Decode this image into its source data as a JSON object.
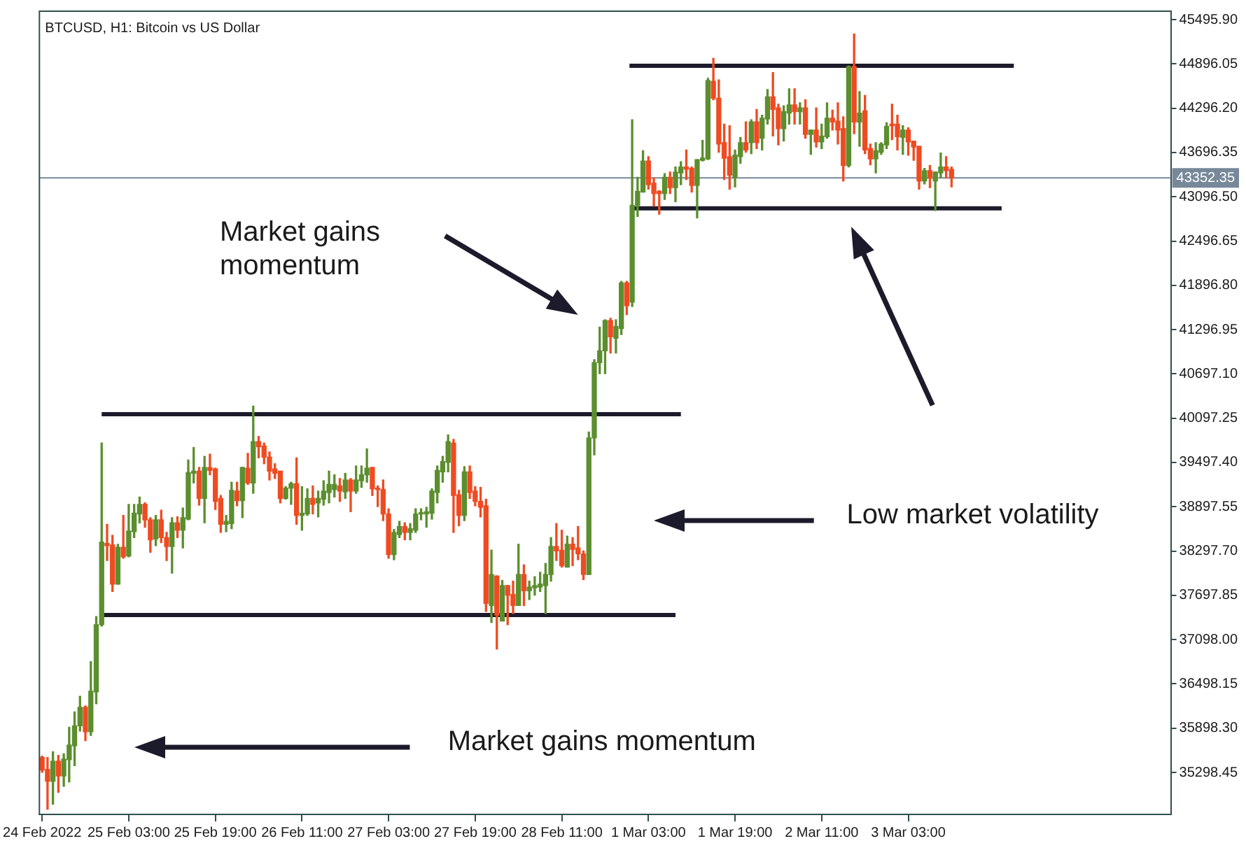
{
  "chart_data": {
    "type": "candlestick",
    "title": "BTCUSD, H1: Bitcoin vs US Dollar",
    "annotations": [
      "Market gains\nmomentum",
      "Low market volatility",
      "Market gains momentum"
    ],
    "x": [
      "2022-02-24T11:00",
      "2022-02-24T12:00",
      "2022-02-24T13:00",
      "2022-02-24T14:00",
      "2022-02-24T15:00",
      "2022-02-24T16:00",
      "2022-02-24T17:00",
      "2022-02-24T18:00",
      "2022-02-24T19:00",
      "2022-02-24T20:00",
      "2022-02-24T21:00",
      "2022-02-24T22:00",
      "2022-02-24T23:00",
      "2022-02-25T00:00",
      "2022-02-25T01:00",
      "2022-02-25T02:00",
      "2022-02-25T03:00",
      "2022-02-25T04:00",
      "2022-02-25T05:00",
      "2022-02-25T06:00",
      "2022-02-25T07:00",
      "2022-02-25T08:00",
      "2022-02-25T09:00",
      "2022-02-25T10:00",
      "2022-02-25T11:00",
      "2022-02-25T12:00",
      "2022-02-25T13:00",
      "2022-02-25T14:00",
      "2022-02-25T15:00",
      "2022-02-25T16:00",
      "2022-02-25T17:00",
      "2022-02-25T18:00",
      "2022-02-25T19:00",
      "2022-02-25T20:00",
      "2022-02-25T21:00",
      "2022-02-25T22:00",
      "2022-02-25T23:00",
      "2022-02-26T00:00",
      "2022-02-26T01:00",
      "2022-02-26T02:00",
      "2022-02-26T03:00",
      "2022-02-26T04:00",
      "2022-02-26T05:00",
      "2022-02-26T06:00",
      "2022-02-26T07:00",
      "2022-02-26T08:00",
      "2022-02-26T09:00",
      "2022-02-26T10:00",
      "2022-02-26T11:00",
      "2022-02-26T12:00",
      "2022-02-26T13:00",
      "2022-02-26T14:00",
      "2022-02-26T15:00",
      "2022-02-26T16:00",
      "2022-02-26T17:00",
      "2022-02-26T18:00",
      "2022-02-26T19:00",
      "2022-02-26T20:00",
      "2022-02-26T21:00",
      "2022-02-26T22:00",
      "2022-02-26T23:00",
      "2022-02-27T00:00",
      "2022-02-27T01:00",
      "2022-02-27T02:00",
      "2022-02-27T03:00",
      "2022-02-27T04:00",
      "2022-02-27T05:00",
      "2022-02-27T06:00",
      "2022-02-27T07:00",
      "2022-02-27T08:00",
      "2022-02-27T09:00",
      "2022-02-27T10:00",
      "2022-02-27T11:00",
      "2022-02-27T12:00",
      "2022-02-27T13:00",
      "2022-02-27T14:00",
      "2022-02-27T15:00",
      "2022-02-27T16:00",
      "2022-02-27T17:00",
      "2022-02-27T18:00",
      "2022-02-27T19:00",
      "2022-02-27T20:00",
      "2022-02-27T21:00",
      "2022-02-27T22:00",
      "2022-02-27T23:00",
      "2022-02-28T00:00",
      "2022-02-28T01:00",
      "2022-02-28T02:00",
      "2022-02-28T03:00",
      "2022-02-28T04:00",
      "2022-02-28T05:00",
      "2022-02-28T06:00",
      "2022-02-28T07:00",
      "2022-02-28T08:00",
      "2022-02-28T09:00",
      "2022-02-28T10:00",
      "2022-02-28T11:00",
      "2022-02-28T12:00",
      "2022-02-28T13:00",
      "2022-02-28T14:00",
      "2022-02-28T15:00",
      "2022-02-28T16:00",
      "2022-02-28T17:00",
      "2022-02-28T18:00",
      "2022-02-28T19:00",
      "2022-02-28T20:00",
      "2022-02-28T21:00",
      "2022-02-28T22:00",
      "2022-02-28T23:00",
      "2022-03-01T00:00",
      "2022-03-01T01:00",
      "2022-03-01T02:00",
      "2022-03-01T03:00",
      "2022-03-01T04:00",
      "2022-03-01T05:00",
      "2022-03-01T06:00",
      "2022-03-01T07:00",
      "2022-03-01T08:00",
      "2022-03-01T09:00",
      "2022-03-01T10:00",
      "2022-03-01T11:00",
      "2022-03-01T12:00",
      "2022-03-01T13:00",
      "2022-03-01T14:00",
      "2022-03-01T15:00",
      "2022-03-01T16:00",
      "2022-03-01T17:00",
      "2022-03-01T18:00",
      "2022-03-01T19:00",
      "2022-03-01T20:00",
      "2022-03-01T21:00",
      "2022-03-01T22:00",
      "2022-03-01T23:00",
      "2022-03-02T00:00",
      "2022-03-02T01:00",
      "2022-03-02T02:00",
      "2022-03-02T03:00",
      "2022-03-02T04:00",
      "2022-03-02T05:00",
      "2022-03-02T06:00",
      "2022-03-02T07:00",
      "2022-03-02T08:00",
      "2022-03-02T09:00",
      "2022-03-02T10:00",
      "2022-03-02T11:00",
      "2022-03-02T12:00",
      "2022-03-02T13:00",
      "2022-03-02T14:00",
      "2022-03-02T15:00",
      "2022-03-02T16:00",
      "2022-03-02T17:00",
      "2022-03-02T18:00",
      "2022-03-02T19:00",
      "2022-03-02T20:00",
      "2022-03-02T21:00",
      "2022-03-02T22:00",
      "2022-03-02T23:00",
      "2022-03-03T00:00",
      "2022-03-03T01:00",
      "2022-03-03T02:00",
      "2022-03-03T03:00",
      "2022-03-03T04:00",
      "2022-03-03T05:00",
      "2022-03-03T06:00",
      "2022-03-03T07:00",
      "2022-03-03T08:00",
      "2022-03-03T09:00",
      "2022-03-03T10:00",
      "2022-03-03T11:00"
    ],
    "ohlc": [
      [
        35500,
        35520,
        35300,
        35330
      ],
      [
        35340,
        35500,
        34800,
        35180
      ],
      [
        35180,
        35580,
        34870,
        35450
      ],
      [
        35450,
        35530,
        35030,
        35250
      ],
      [
        35250,
        35550,
        35110,
        35480
      ],
      [
        35470,
        35910,
        35170,
        35670
      ],
      [
        35660,
        36120,
        35390,
        35930
      ],
      [
        35930,
        36330,
        35860,
        36180
      ],
      [
        36180,
        36200,
        35730,
        35850
      ],
      [
        35850,
        36800,
        35800,
        36400
      ],
      [
        36390,
        37410,
        36230,
        37300
      ],
      [
        37300,
        39760,
        37280,
        38420
      ],
      [
        38400,
        38660,
        38170,
        38370
      ],
      [
        38380,
        38510,
        37750,
        37850
      ],
      [
        37850,
        38390,
        37850,
        38350
      ],
      [
        38350,
        38780,
        38200,
        38220
      ],
      [
        38230,
        38930,
        38220,
        38570
      ],
      [
        38560,
        38930,
        38480,
        38810
      ],
      [
        38800,
        39030,
        38680,
        38930
      ],
      [
        38930,
        38950,
        38620,
        38720
      ],
      [
        38720,
        38750,
        38280,
        38450
      ],
      [
        38460,
        38780,
        38370,
        38720
      ],
      [
        38720,
        38850,
        38410,
        38480
      ],
      [
        38480,
        38550,
        38170,
        38360
      ],
      [
        38360,
        38750,
        38000,
        38680
      ],
      [
        38680,
        38760,
        38480,
        38580
      ],
      [
        38580,
        38880,
        38340,
        38750
      ],
      [
        38730,
        39530,
        38720,
        39360
      ],
      [
        39350,
        39700,
        39220,
        39380
      ],
      [
        39380,
        39430,
        38920,
        39010
      ],
      [
        39010,
        39580,
        38680,
        39430
      ],
      [
        39430,
        39610,
        39330,
        39390
      ],
      [
        39410,
        39420,
        38860,
        38970
      ],
      [
        39010,
        39050,
        38550,
        38660
      ],
      [
        38660,
        38780,
        38560,
        38700
      ],
      [
        38670,
        39230,
        38600,
        39120
      ],
      [
        39110,
        39230,
        38910,
        38980
      ],
      [
        38980,
        39430,
        38750,
        39430
      ],
      [
        39420,
        39620,
        39200,
        39220
      ],
      [
        39220,
        40260,
        39080,
        39780
      ],
      [
        39780,
        39850,
        39560,
        39710
      ],
      [
        39720,
        39760,
        39480,
        39570
      ],
      [
        39570,
        39640,
        39260,
        39380
      ],
      [
        39410,
        39480,
        39280,
        39350
      ],
      [
        39380,
        39380,
        38950,
        39010
      ],
      [
        39010,
        39170,
        39000,
        39150
      ],
      [
        39150,
        39230,
        38930,
        39210
      ],
      [
        39210,
        39560,
        38660,
        38780
      ],
      [
        38780,
        39170,
        38580,
        38810
      ],
      [
        38800,
        39140,
        38780,
        39010
      ],
      [
        39010,
        39180,
        38800,
        38930
      ],
      [
        38950,
        39110,
        38760,
        39010
      ],
      [
        39000,
        39250,
        38920,
        39110
      ],
      [
        39090,
        39380,
        38950,
        39200
      ],
      [
        39130,
        39330,
        39030,
        39200
      ],
      [
        39180,
        39280,
        38970,
        39110
      ],
      [
        39100,
        39350,
        39010,
        39260
      ],
      [
        39260,
        39280,
        38830,
        39110
      ],
      [
        39110,
        39450,
        39080,
        39260
      ],
      [
        39250,
        39450,
        39160,
        39330
      ],
      [
        39330,
        39680,
        39230,
        39420
      ],
      [
        39430,
        39430,
        39050,
        39140
      ],
      [
        39150,
        39180,
        38900,
        39130
      ],
      [
        39130,
        39260,
        38710,
        38800
      ],
      [
        38800,
        38870,
        38200,
        38250
      ],
      [
        38250,
        38590,
        38180,
        38550
      ],
      [
        38520,
        38700,
        38480,
        38630
      ],
      [
        38630,
        38680,
        38450,
        38550
      ],
      [
        38550,
        38670,
        38450,
        38600
      ],
      [
        38580,
        38870,
        38550,
        38800
      ],
      [
        38800,
        38870,
        38720,
        38810
      ],
      [
        38800,
        38890,
        38620,
        38830
      ],
      [
        38810,
        39140,
        38730,
        39110
      ],
      [
        39090,
        39450,
        38950,
        39390
      ],
      [
        39370,
        39580,
        39230,
        39510
      ],
      [
        39500,
        39870,
        39370,
        39780
      ],
      [
        39760,
        39810,
        38550,
        39050
      ],
      [
        39060,
        39120,
        38640,
        38780
      ],
      [
        38780,
        39440,
        38710,
        39370
      ],
      [
        39370,
        39450,
        39010,
        39090
      ],
      [
        39110,
        39170,
        38910,
        38970
      ],
      [
        38970,
        39160,
        38760,
        38890
      ],
      [
        38910,
        39000,
        37480,
        37590
      ],
      [
        37560,
        38310,
        37330,
        37980
      ],
      [
        37960,
        37960,
        36970,
        37430
      ],
      [
        37350,
        37900,
        37350,
        37830
      ],
      [
        37830,
        37830,
        37300,
        37700
      ],
      [
        37710,
        37890,
        37450,
        37560
      ],
      [
        37560,
        38390,
        37560,
        37980
      ],
      [
        37980,
        38110,
        37560,
        37760
      ],
      [
        37760,
        37890,
        37640,
        37810
      ],
      [
        37800,
        37950,
        37700,
        37830
      ],
      [
        37810,
        38010,
        37750,
        37850
      ],
      [
        37830,
        38130,
        37450,
        37980
      ],
      [
        37980,
        38480,
        37890,
        38360
      ],
      [
        38360,
        38670,
        38170,
        38300
      ],
      [
        38310,
        38580,
        38080,
        38100
      ],
      [
        38080,
        38500,
        38080,
        38390
      ],
      [
        38390,
        38480,
        38100,
        38320
      ],
      [
        38340,
        38630,
        38180,
        38260
      ],
      [
        38260,
        38300,
        37910,
        37980
      ],
      [
        37980,
        39910,
        37980,
        39830
      ],
      [
        39830,
        40890,
        39600,
        40850
      ],
      [
        40850,
        41330,
        40700,
        41010
      ],
      [
        41010,
        41430,
        40700,
        41420
      ],
      [
        41420,
        41450,
        40980,
        41200
      ],
      [
        41180,
        41430,
        40980,
        41340
      ],
      [
        41310,
        41950,
        41230,
        41930
      ],
      [
        41930,
        41950,
        41500,
        41620
      ],
      [
        41670,
        44140,
        41610,
        42980
      ],
      [
        42980,
        43360,
        42830,
        43170
      ],
      [
        43160,
        43720,
        43160,
        43580
      ],
      [
        43580,
        43640,
        43200,
        43260
      ],
      [
        43280,
        43350,
        42970,
        43140
      ],
      [
        43170,
        43180,
        42860,
        43140
      ],
      [
        43140,
        43410,
        43060,
        43360
      ],
      [
        43360,
        43430,
        43140,
        43220
      ],
      [
        43220,
        43500,
        43030,
        43430
      ],
      [
        43420,
        43570,
        43260,
        43500
      ],
      [
        43500,
        43730,
        43330,
        43470
      ],
      [
        43480,
        43500,
        43160,
        43250
      ],
      [
        43250,
        43600,
        42810,
        43600
      ],
      [
        43590,
        43860,
        43580,
        43620
      ],
      [
        43610,
        44700,
        43600,
        44670
      ],
      [
        44660,
        44970,
        44410,
        44430
      ],
      [
        44430,
        44680,
        43700,
        43810
      ],
      [
        43830,
        44080,
        43330,
        43620
      ],
      [
        43640,
        44060,
        43200,
        43390
      ],
      [
        43360,
        43730,
        43230,
        43660
      ],
      [
        43640,
        43900,
        43550,
        43830
      ],
      [
        43830,
        44110,
        43700,
        43730
      ],
      [
        43830,
        44140,
        43680,
        44110
      ],
      [
        44110,
        44280,
        43750,
        43830
      ],
      [
        43890,
        44200,
        43730,
        44160
      ],
      [
        44150,
        44550,
        44080,
        44450
      ],
      [
        44450,
        44780,
        43920,
        44280
      ],
      [
        44300,
        44350,
        43800,
        44020
      ],
      [
        44020,
        44330,
        43850,
        44250
      ],
      [
        44230,
        44560,
        44080,
        44340
      ],
      [
        44340,
        44560,
        44080,
        44250
      ],
      [
        44250,
        44370,
        44080,
        44300
      ],
      [
        44300,
        44410,
        43890,
        43940
      ],
      [
        43940,
        44000,
        43670,
        44000
      ],
      [
        44000,
        44300,
        43770,
        43840
      ],
      [
        43840,
        44080,
        43750,
        43920
      ],
      [
        43910,
        44370,
        43890,
        44160
      ],
      [
        44160,
        44270,
        44000,
        44110
      ],
      [
        44120,
        44370,
        43810,
        44000
      ],
      [
        44020,
        44180,
        43310,
        43520
      ],
      [
        43520,
        44870,
        43500,
        44860
      ],
      [
        44860,
        45300,
        43950,
        44110
      ],
      [
        44110,
        44520,
        43780,
        44230
      ],
      [
        44260,
        44470,
        43680,
        43730
      ],
      [
        43750,
        43810,
        43530,
        43610
      ],
      [
        43610,
        43830,
        43420,
        43720
      ],
      [
        43700,
        43830,
        43670,
        43810
      ],
      [
        43800,
        44100,
        43750,
        44050
      ],
      [
        44080,
        44350,
        43870,
        44060
      ],
      [
        44080,
        44200,
        43730,
        43910
      ],
      [
        43900,
        44060,
        43670,
        44000
      ],
      [
        44000,
        44030,
        43660,
        43840
      ],
      [
        43850,
        43850,
        43590,
        43770
      ],
      [
        43780,
        43780,
        43200,
        43310
      ],
      [
        43310,
        43480,
        43270,
        43450
      ],
      [
        43450,
        43520,
        43220,
        43350
      ],
      [
        43310,
        43430,
        42910,
        43430
      ],
      [
        43420,
        43690,
        43360,
        43500
      ],
      [
        43500,
        43640,
        43350,
        43450
      ],
      [
        43470,
        43500,
        43230,
        43350
      ]
    ],
    "colors": [
      "#ef4b22",
      "#ef4b22",
      "#5b8e2f",
      "#ef4b22",
      "#5b8e2f",
      "#5b8e2f",
      "#5b8e2f",
      "#5b8e2f",
      "#ef4b22",
      "#5b8e2f",
      "#5b8e2f",
      "#5b8e2f",
      "#ef4b22",
      "#ef4b22",
      "#5b8e2f",
      "#ef4b22",
      "#5b8e2f",
      "#5b8e2f",
      "#5b8e2f",
      "#ef4b22",
      "#ef4b22",
      "#5b8e2f",
      "#ef4b22",
      "#ef4b22",
      "#5b8e2f",
      "#ef4b22",
      "#5b8e2f",
      "#5b8e2f",
      "#5b8e2f",
      "#ef4b22",
      "#5b8e2f",
      "#ef4b22",
      "#ef4b22",
      "#ef4b22",
      "#5b8e2f",
      "#5b8e2f",
      "#ef4b22",
      "#5b8e2f",
      "#ef4b22",
      "#5b8e2f",
      "#ef4b22",
      "#ef4b22",
      "#ef4b22",
      "#ef4b22",
      "#ef4b22",
      "#5b8e2f",
      "#5b8e2f",
      "#ef4b22",
      "#5b8e2f",
      "#5b8e2f",
      "#ef4b22",
      "#5b8e2f",
      "#5b8e2f",
      "#5b8e2f",
      "#5b8e2f",
      "#ef4b22",
      "#5b8e2f",
      "#ef4b22",
      "#5b8e2f",
      "#5b8e2f",
      "#5b8e2f",
      "#ef4b22",
      "#ef4b22",
      "#ef4b22",
      "#ef4b22",
      "#5b8e2f",
      "#5b8e2f",
      "#ef4b22",
      "#5b8e2f",
      "#5b8e2f",
      "#5b8e2f",
      "#5b8e2f",
      "#5b8e2f",
      "#5b8e2f",
      "#5b8e2f",
      "#5b8e2f",
      "#ef4b22",
      "#ef4b22",
      "#5b8e2f",
      "#ef4b22",
      "#ef4b22",
      "#ef4b22",
      "#ef4b22",
      "#5b8e2f",
      "#ef4b22",
      "#5b8e2f",
      "#ef4b22",
      "#ef4b22",
      "#5b8e2f",
      "#ef4b22",
      "#5b8e2f",
      "#5b8e2f",
      "#5b8e2f",
      "#5b8e2f",
      "#5b8e2f",
      "#ef4b22",
      "#ef4b22",
      "#5b8e2f",
      "#ef4b22",
      "#ef4b22",
      "#ef4b22",
      "#5b8e2f",
      "#5b8e2f",
      "#5b8e2f",
      "#5b8e2f",
      "#ef4b22",
      "#5b8e2f",
      "#5b8e2f",
      "#ef4b22",
      "#5b8e2f",
      "#5b8e2f",
      "#5b8e2f",
      "#ef4b22",
      "#ef4b22",
      "#ef4b22",
      "#5b8e2f",
      "#ef4b22",
      "#5b8e2f",
      "#5b8e2f",
      "#ef4b22",
      "#ef4b22",
      "#5b8e2f",
      "#5b8e2f",
      "#5b8e2f",
      "#ef4b22",
      "#ef4b22",
      "#ef4b22",
      "#ef4b22",
      "#5b8e2f",
      "#5b8e2f",
      "#ef4b22",
      "#5b8e2f",
      "#ef4b22",
      "#5b8e2f",
      "#5b8e2f",
      "#ef4b22",
      "#ef4b22",
      "#5b8e2f",
      "#5b8e2f",
      "#ef4b22",
      "#5b8e2f",
      "#ef4b22",
      "#5b8e2f",
      "#ef4b22",
      "#5b8e2f",
      "#5b8e2f",
      "#ef4b22",
      "#ef4b22",
      "#ef4b22",
      "#5b8e2f",
      "#ef4b22",
      "#5b8e2f",
      "#ef4b22",
      "#ef4b22",
      "#5b8e2f",
      "#5b8e2f",
      "#5b8e2f",
      "#ef4b22",
      "#ef4b22",
      "#5b8e2f",
      "#ef4b22",
      "#ef4b22",
      "#ef4b22",
      "#5b8e2f",
      "#ef4b22",
      "#5b8e2f",
      "#5b8e2f",
      "#ef4b22",
      "#ef4b22"
    ],
    "series": [
      {
        "type": "line",
        "x": [
          "2022-02-24T22:00",
          "2022-03-01T09:00"
        ],
        "values": [
          40150,
          40150
        ],
        "color": "#1c1b2b"
      },
      {
        "type": "line",
        "x": [
          "2022-02-24T22:00",
          "2022-03-01T08:00"
        ],
        "values": [
          37430,
          37430
        ],
        "color": "#1c1b2b"
      },
      {
        "type": "line",
        "x": [
          "2022-02-28T23:30",
          "2022-03-03T22:30"
        ],
        "values": [
          44870,
          44870
        ],
        "color": "#1c1b2b"
      },
      {
        "type": "line",
        "x": [
          "2022-02-28T23:45",
          "2022-03-03T20:15"
        ],
        "values": [
          42940,
          42940
        ],
        "color": "#1c1b2b"
      }
    ],
    "xlim": [
      "2022-02-24T10:30",
      "2022-03-05T03:30"
    ],
    "xticks": [
      {
        "value": "2022-02-24T11:00",
        "label": "24 Feb 2022"
      },
      {
        "value": "2022-02-25T03:00",
        "label": "25 Feb 03:00"
      },
      {
        "value": "2022-02-25T19:00",
        "label": "25 Feb 19:00"
      },
      {
        "value": "2022-02-26T11:00",
        "label": "26 Feb 11:00"
      },
      {
        "value": "2022-02-27T03:00",
        "label": "27 Feb 03:00"
      },
      {
        "value": "2022-02-27T19:00",
        "label": "27 Feb 19:00"
      },
      {
        "value": "2022-02-28T11:00",
        "label": "28 Feb 11:00"
      },
      {
        "value": "2022-03-01T03:00",
        "label": "1 Mar 03:00"
      },
      {
        "value": "2022-03-01T19:00",
        "label": "1 Mar 19:00"
      },
      {
        "value": "2022-03-02T11:00",
        "label": "2 Mar 11:00"
      },
      {
        "value": "2022-03-03T03:00",
        "label": "3 Mar 03:00"
      }
    ],
    "ylim": [
      34730,
      45610
    ],
    "yticks": [
      {
        "value": 35298.45,
        "label": "35298.45"
      },
      {
        "value": 35898.3,
        "label": "35898.30"
      },
      {
        "value": 36498.15,
        "label": "36498.15"
      },
      {
        "value": 37098,
        "label": "37098.00"
      },
      {
        "value": 37697.85,
        "label": "37697.85"
      },
      {
        "value": 38297.7,
        "label": "38297.70"
      },
      {
        "value": 38897.55,
        "label": "38897.55"
      },
      {
        "value": 39497.4,
        "label": "39497.40"
      },
      {
        "value": 40097.25,
        "label": "40097.25"
      },
      {
        "value": 40697.1,
        "label": "40697.10"
      },
      {
        "value": 41296.95,
        "label": "41296.95"
      },
      {
        "value": 41896.8,
        "label": "41896.80"
      },
      {
        "value": 42496.65,
        "label": "42496.65"
      },
      {
        "value": 43096.5,
        "label": "43096.50"
      },
      {
        "value": 43696.35,
        "label": "43696.35"
      },
      {
        "value": 44296.2,
        "label": "44296.20"
      },
      {
        "value": 44896.05,
        "label": "44896.05"
      },
      {
        "value": 45495.9,
        "label": "45495.90"
      }
    ],
    "ref_lines": [
      {
        "axis": "y",
        "value": 43352.35,
        "label": "43352.35",
        "color": "#778899"
      }
    ]
  }
}
